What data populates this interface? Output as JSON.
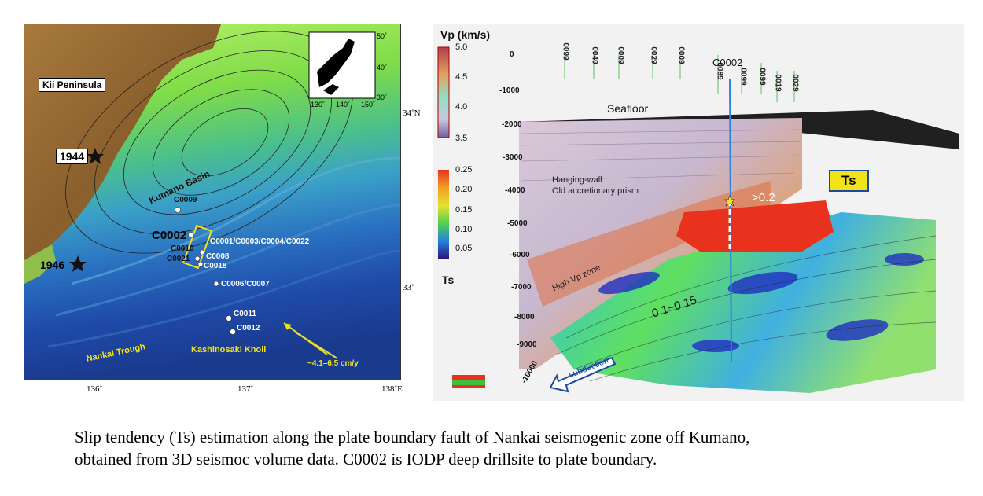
{
  "map": {
    "labels": {
      "kii": "Kii Peninsula",
      "kumano": "Kumano Basin",
      "nankai": "Nankai Trough",
      "kashinosaki": "Kashinosaki Knoll",
      "rate": "~4.1–6.5 cm/y",
      "eq1944": "1944",
      "eq1946": "1946"
    },
    "sites": {
      "c0009": "C0009",
      "c0002": "C0002",
      "c0001": "C0001/C0003/C0004/C0022",
      "c0010": "C0010",
      "c0021": "C0021",
      "c0008": "C0008",
      "c0018": "C0018",
      "c0006": "C0006/C0007",
      "c0011": "C0011",
      "c0012": "C0012"
    },
    "lon_ticks": [
      "136˚",
      "137˚",
      "138˚E"
    ],
    "lat_ticks": [
      "34˚N",
      "33˚"
    ],
    "inset_lat": [
      "50˚",
      "40˚",
      "30˚"
    ],
    "inset_lon": [
      "130˚",
      "140˚",
      "150˚"
    ]
  },
  "seismic": {
    "vp_title": "Vp (km/s)",
    "vp_ticks": [
      "5.0",
      "4.5",
      "4.0",
      "3.5"
    ],
    "ts_title": "Ts",
    "ts_ticks": [
      "0.25",
      "0.20",
      "0.15",
      "0.10",
      "0.05"
    ],
    "depths": [
      "0",
      "-1000",
      "-2000",
      "-3000",
      "-4000",
      "-5000",
      "-6000",
      "-7000",
      "-8000",
      "-9000",
      "-10000"
    ],
    "well": "C0002",
    "seafloor": "Seafloor",
    "hanging1": "Hanging-wall",
    "hanging2": "Old accretionary prism",
    "highvp": "High Vp zone",
    "ts_box": "Ts",
    "gt": ">0.2",
    "range": "0.1~0.15",
    "subduction": "subduction",
    "top_ticks": [
      "0099",
      "0049",
      "0029",
      "0009",
      "0089",
      "0099",
      "0099",
      "0019",
      "0029",
      "0009"
    ]
  },
  "caption": {
    "line1": "Slip tendency (Ts) estimation along the plate boundary fault of Nankai seismogenic zone off Kumano,",
    "line2": "obtained from 3D  seismoc volume data. C0002  is IODP deep drillsite to plate boundary."
  },
  "colors": {
    "land": "#9a6a30",
    "shelf": "#78d23c",
    "deep": "#1a3d9a",
    "yellow_text": "#f2e21a",
    "ts_high": "#e8321e"
  }
}
